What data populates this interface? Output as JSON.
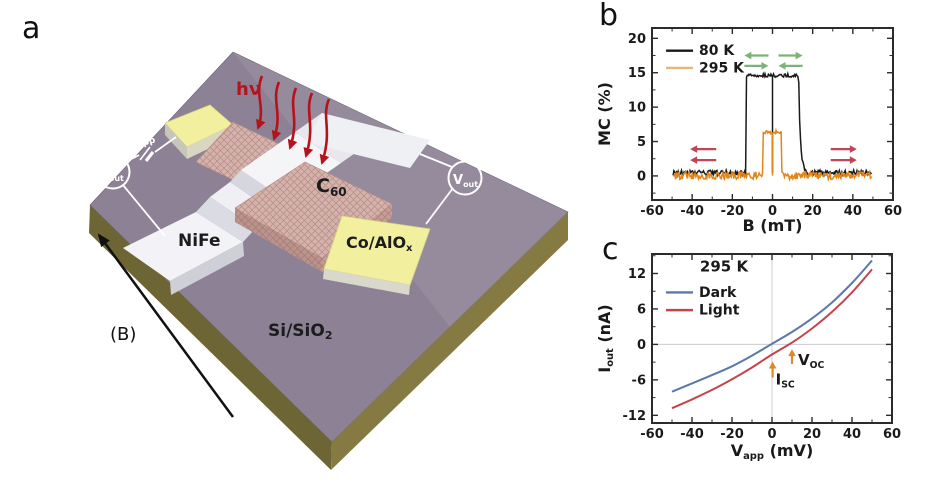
{
  "panels": {
    "a_letter": "a",
    "b_letter": "b",
    "c_letter": "c"
  },
  "panel_a": {
    "labels": {
      "hv": "hν",
      "vapp_main": "V",
      "vapp_sub": "app",
      "iout_main": "I",
      "iout_sub": "out",
      "vout_main": "V",
      "vout_sub": "out",
      "c60_main": "C",
      "c60_sub": "60",
      "nife": "NiFe",
      "coalox_main": "Co/AlO",
      "coalox_sub": "x",
      "substrate_main": "Si/SiO",
      "substrate_sub": "2",
      "bfield": "(B)"
    },
    "colors": {
      "substrate_top": "#8d8295",
      "substrate_side_left": "#6e6535",
      "substrate_side_right": "#857b42",
      "pad_yellow": "#f2ef9f",
      "electrode_white": "#f3f3f7",
      "c60_pink": "#d3b3ac",
      "photon_red": "#b5121b",
      "circuit_white": "#ffffff"
    }
  },
  "chart_data": [
    {
      "id": "b",
      "type": "line",
      "xlabel": "B (mT)",
      "ylabel": "MC (%)",
      "xlim": [
        -60,
        60
      ],
      "ylim": [
        -3.5,
        21.5
      ],
      "xticks": [
        -60,
        -40,
        -20,
        0,
        20,
        40,
        60
      ],
      "yticks": [
        0,
        5,
        10,
        15,
        20
      ],
      "xminor": 10,
      "yminor": 2.5,
      "series": [
        {
          "name": "80 K",
          "color": "#1a1a1a",
          "style": "spinvalve",
          "baseline": 0.45,
          "plateau": 14.6,
          "on": -13.2,
          "off": 13.0,
          "tail": 0.9,
          "noise_base": 0.8,
          "noise_plateau": 0.5,
          "xrange": [
            -49.5,
            49.5
          ],
          "zero_switch": true
        },
        {
          "name": "295 K",
          "color": "#e2861b",
          "style": "spinvalve",
          "baseline": 0.05,
          "plateau": 6.35,
          "on": -4.8,
          "off": 4.6,
          "tail": 0,
          "noise_base": 1.1,
          "noise_plateau": 0.55,
          "xrange": [
            -49.5,
            49.5
          ],
          "zero_switch": true
        }
      ],
      "legend": {
        "x": -53,
        "rows": [
          {
            "label": "80 K",
            "y": 18.2,
            "color": "#1a1a1a"
          },
          {
            "label": "295 K",
            "y": 15.7,
            "color": "#e6b47e"
          }
        ]
      },
      "arrows": [
        {
          "x1": -14,
          "x2": -2,
          "y": 17.5,
          "dir": "left",
          "color": "#7db37a"
        },
        {
          "x1": -14,
          "x2": -2,
          "y": 16.0,
          "dir": "right",
          "color": "#7db37a"
        },
        {
          "x1": 3,
          "x2": 15,
          "y": 17.5,
          "dir": "right",
          "color": "#7db37a"
        },
        {
          "x1": 3,
          "x2": 15,
          "y": 16.0,
          "dir": "left",
          "color": "#7db37a"
        },
        {
          "x1": -41,
          "x2": -28,
          "y": 3.9,
          "dir": "left",
          "color": "#c24458"
        },
        {
          "x1": -41,
          "x2": -28,
          "y": 2.3,
          "dir": "left",
          "color": "#c24458"
        },
        {
          "x1": 29,
          "x2": 42,
          "y": 3.9,
          "dir": "right",
          "color": "#c24458"
        },
        {
          "x1": 29,
          "x2": 42,
          "y": 2.3,
          "dir": "right",
          "color": "#c24458"
        }
      ]
    },
    {
      "id": "c",
      "type": "line",
      "xlabel_main": "V",
      "xlabel_sub": "app",
      "xlabel_rest": " (mV)",
      "ylabel_main": "I",
      "ylabel_sub": "out",
      "ylabel_rest": " (nA)",
      "xlim": [
        -60,
        60
      ],
      "ylim": [
        -13.3,
        15.3
      ],
      "xticks": [
        -60,
        -40,
        -20,
        0,
        20,
        40,
        60
      ],
      "yticks": [
        -12,
        -6,
        0,
        6,
        12
      ],
      "xminor": 10,
      "yminor": 3,
      "zerolines": true,
      "series": [
        {
          "name": "Dark",
          "color": "#5a79a8",
          "points": [
            [
              -50,
              -8.0
            ],
            [
              -40,
              -6.6
            ],
            [
              -30,
              -5.2
            ],
            [
              -20,
              -3.7
            ],
            [
              -10,
              -1.9
            ],
            [
              0,
              0.1
            ],
            [
              10,
              2.1
            ],
            [
              20,
              4.4
            ],
            [
              30,
              7.1
            ],
            [
              40,
              10.4
            ],
            [
              50,
              14.2
            ]
          ]
        },
        {
          "name": "Light",
          "color": "#c4444c",
          "points": [
            [
              -50,
              -10.8
            ],
            [
              -40,
              -9.3
            ],
            [
              -30,
              -7.7
            ],
            [
              -20,
              -5.9
            ],
            [
              -10,
              -3.9
            ],
            [
              0,
              -1.7
            ],
            [
              10,
              0.3
            ],
            [
              20,
              2.7
            ],
            [
              30,
              5.5
            ],
            [
              40,
              8.8
            ],
            [
              50,
              12.7
            ]
          ]
        }
      ],
      "legend_title": {
        "label": "295 K",
        "x": -24,
        "y": 12.3
      },
      "legend": {
        "x": -53,
        "rows": [
          {
            "label": "Dark",
            "y": 8.8,
            "color": "#5a79a8"
          },
          {
            "label": "Light",
            "y": 5.8,
            "color": "#c4444c"
          }
        ]
      },
      "annotations": [
        {
          "type": "uparrow",
          "x": 0.3,
          "y1": -5.6,
          "y2": -2.9,
          "color": "#d98a2e",
          "label_main": "I",
          "label_sub": "SC",
          "lx": 1.8,
          "ly": -6.8
        },
        {
          "type": "uparrow",
          "x": 10,
          "y1": -3.3,
          "y2": -0.8,
          "color": "#d98a2e",
          "label_main": "V",
          "label_sub": "OC",
          "lx": 13,
          "ly": -3.5
        }
      ]
    }
  ]
}
